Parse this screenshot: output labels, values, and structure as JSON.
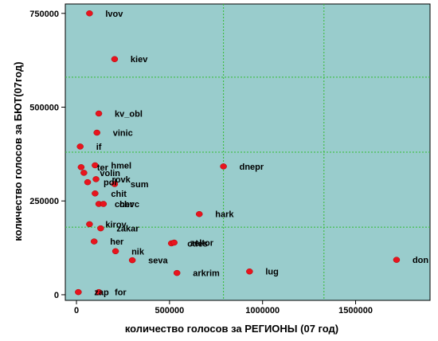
{
  "chart_data": {
    "type": "scatter",
    "title": "",
    "xlabel": "количество  голосов за РЕГИОНЫ (07 год)",
    "ylabel": "количество голосов за БЮТ(07год)",
    "xlim": [
      -60000,
      1900000
    ],
    "ylim": [
      -15000,
      775000
    ],
    "xticks": [
      0,
      500000,
      1000000,
      1500000
    ],
    "yticks": [
      0,
      250000,
      500000,
      750000
    ],
    "xtick_labels": [
      "0",
      "500000",
      "1000000",
      "1500000"
    ],
    "ytick_labels": [
      "0",
      "250000",
      "500000",
      "750000"
    ],
    "grid": true,
    "colors": {
      "plot_bg": "#99cccc",
      "point": "#e8141e",
      "grid": "#33bb33",
      "frame": "#000000"
    },
    "points": [
      {
        "label": "lvov",
        "x": 70000,
        "y": 750000
      },
      {
        "label": "kiev",
        "x": 205000,
        "y": 628000
      },
      {
        "label": "kv_obl",
        "x": 120000,
        "y": 483000
      },
      {
        "label": "vinic",
        "x": 110000,
        "y": 432000
      },
      {
        "label": "if",
        "x": 20000,
        "y": 395000
      },
      {
        "label": "ter",
        "x": 25000,
        "y": 340000
      },
      {
        "label": "hmel",
        "x": 100000,
        "y": 345000
      },
      {
        "label": "volin",
        "x": 40000,
        "y": 325000
      },
      {
        "label": "rovk",
        "x": 105000,
        "y": 308000
      },
      {
        "label": "pol",
        "x": 60000,
        "y": 300000
      },
      {
        "label": "sum",
        "x": 205000,
        "y": 295000
      },
      {
        "label": "chit",
        "x": 100000,
        "y": 270000
      },
      {
        "label": "cher",
        "x": 120000,
        "y": 242000
      },
      {
        "label": "chvc",
        "x": 145000,
        "y": 242000
      },
      {
        "label": "kirov",
        "x": 70000,
        "y": 188000
      },
      {
        "label": "zakar",
        "x": 130000,
        "y": 177000
      },
      {
        "label": "her",
        "x": 95000,
        "y": 142000
      },
      {
        "label": "nik",
        "x": 210000,
        "y": 116000
      },
      {
        "label": "seva",
        "x": 300000,
        "y": 92000
      },
      {
        "label": "for",
        "x": 120000,
        "y": 7000
      },
      {
        "label": "zap",
        "x": 10000,
        "y": 7000
      },
      {
        "label": "odes",
        "x": 510000,
        "y": 137000
      },
      {
        "label": "zeltor",
        "x": 525000,
        "y": 139000
      },
      {
        "label": "arkrim",
        "x": 540000,
        "y": 58000
      },
      {
        "label": "hark",
        "x": 660000,
        "y": 215000
      },
      {
        "label": "dnepr",
        "x": 790000,
        "y": 342000
      },
      {
        "label": "lug",
        "x": 930000,
        "y": 62000
      },
      {
        "label": "don",
        "x": 1720000,
        "y": 93000
      }
    ]
  }
}
